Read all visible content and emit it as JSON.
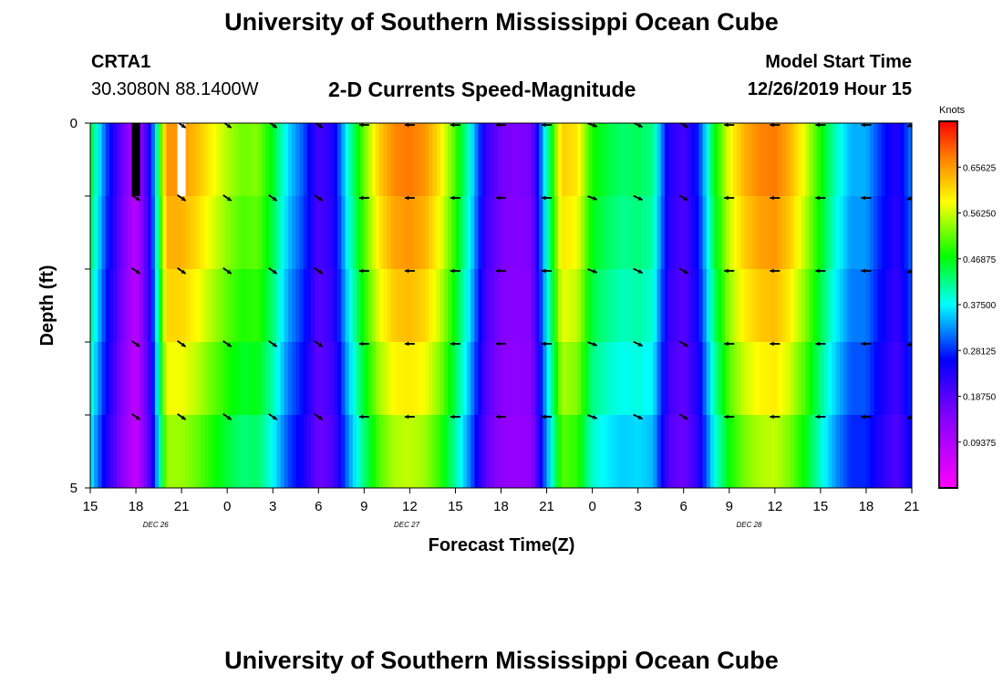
{
  "header": {
    "title_top": "University of Southern Mississippi Ocean Cube",
    "station_id": "CRTA1",
    "station_coords": "30.3080N 88.1400W",
    "plot_title": "2-D Currents Speed-Magnitude",
    "model_start_label": "Model Start Time",
    "model_start_value": "12/26/2019 Hour 15",
    "title_bottom": "University of Southern Mississippi Ocean Cube"
  },
  "chart_data": {
    "type": "heatmap",
    "title": "2-D Currents Speed-Magnitude",
    "xlabel": "Forecast Time(Z)",
    "ylabel": "Depth (ft)",
    "x_range_hours": [
      0,
      54
    ],
    "y_range": [
      0,
      5
    ],
    "x_ticks": [
      {
        "hour": 0,
        "label": "15"
      },
      {
        "hour": 3,
        "label": "18"
      },
      {
        "hour": 6,
        "label": "21"
      },
      {
        "hour": 9,
        "label": "0"
      },
      {
        "hour": 12,
        "label": "3"
      },
      {
        "hour": 15,
        "label": "6"
      },
      {
        "hour": 18,
        "label": "9"
      },
      {
        "hour": 21,
        "label": "12"
      },
      {
        "hour": 24,
        "label": "15"
      },
      {
        "hour": 27,
        "label": "18"
      },
      {
        "hour": 30,
        "label": "21"
      },
      {
        "hour": 33,
        "label": "0"
      },
      {
        "hour": 36,
        "label": "3"
      },
      {
        "hour": 39,
        "label": "6"
      },
      {
        "hour": 42,
        "label": "9"
      },
      {
        "hour": 45,
        "label": "12"
      },
      {
        "hour": 48,
        "label": "15"
      },
      {
        "hour": 51,
        "label": "18"
      },
      {
        "hour": 54,
        "label": "21"
      }
    ],
    "y_ticks": [
      {
        "value": 0,
        "label": "0"
      },
      {
        "value": 5,
        "label": "5"
      }
    ],
    "date_labels": [
      {
        "hour": 4.3,
        "label": "DEC 26"
      },
      {
        "hour": 20.8,
        "label": "DEC 27"
      },
      {
        "hour": 43.3,
        "label": "DEC 28"
      }
    ],
    "colorbar": {
      "unit": "Knots",
      "min": 0.0,
      "max": 0.75,
      "tick_labels": [
        "0.65625",
        "0.56250",
        "0.46875",
        "0.37500",
        "0.28125",
        "0.18750",
        "0.09375"
      ],
      "tick_values": [
        0.65625,
        0.5625,
        0.46875,
        0.375,
        0.28125,
        0.1875,
        0.09375
      ]
    },
    "depth_layers": [
      0,
      1,
      2,
      3,
      4
    ],
    "speed_profile_hours": [
      0,
      1,
      2,
      3,
      4,
      5,
      6,
      7,
      8,
      9,
      10,
      11,
      12,
      13,
      14,
      15,
      16,
      17,
      18,
      19,
      20,
      21,
      22,
      23,
      24,
      25,
      26,
      27,
      28,
      29,
      30,
      31,
      32,
      33,
      34,
      35,
      36,
      37,
      38,
      39,
      40,
      41,
      42,
      43,
      44,
      45,
      46,
      47,
      48,
      49,
      50,
      51,
      52,
      53,
      54
    ],
    "surface_speed_knots": [
      0.46,
      0.3,
      0.18,
      0.08,
      0.26,
      0.66,
      0.66,
      0.63,
      0.59,
      0.55,
      0.52,
      0.53,
      0.46,
      0.36,
      0.3,
      0.2,
      0.24,
      0.4,
      0.52,
      0.62,
      0.67,
      0.68,
      0.66,
      0.6,
      0.5,
      0.38,
      0.22,
      0.16,
      0.15,
      0.16,
      0.4,
      0.62,
      0.6,
      0.48,
      0.45,
      0.43,
      0.44,
      0.42,
      0.24,
      0.2,
      0.28,
      0.46,
      0.58,
      0.64,
      0.67,
      0.68,
      0.64,
      0.57,
      0.48,
      0.4,
      0.34,
      0.34,
      0.28,
      0.23,
      0.32
    ],
    "depth_factors": [
      1.0,
      0.97,
      0.93,
      0.88,
      0.82
    ],
    "arrow_hours": [
      3,
      6,
      9,
      12,
      15,
      18,
      21,
      24,
      27,
      30,
      33,
      36,
      39,
      42,
      45,
      48,
      51,
      54
    ],
    "arrow_directions_deg": [
      -35,
      -35,
      -35,
      -35,
      -35,
      180,
      180,
      180,
      180,
      180,
      -20,
      -25,
      -30,
      180,
      180,
      180,
      180,
      200
    ],
    "special_markers": [
      {
        "hour": 3,
        "color": "#000000"
      },
      {
        "hour": 6,
        "color": "#ffffff"
      }
    ]
  }
}
